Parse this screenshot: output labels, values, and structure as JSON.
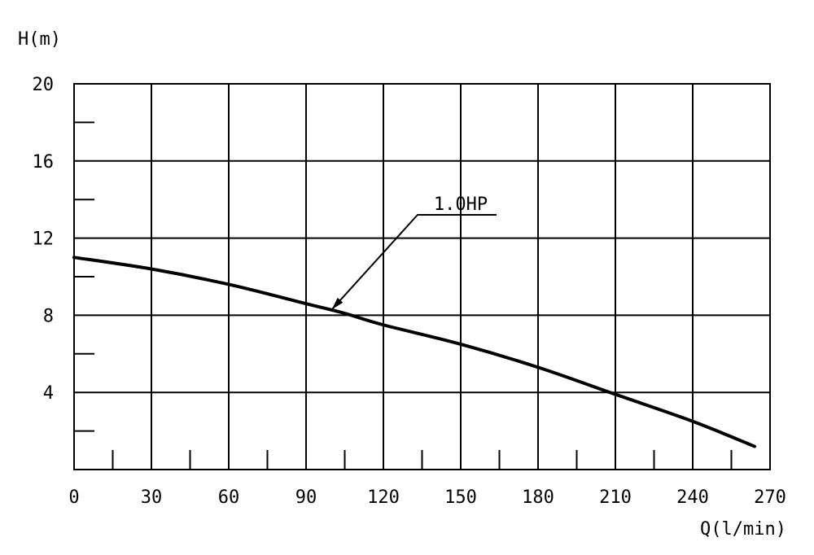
{
  "chart_data": {
    "type": "line",
    "ylabel": "H(m)",
    "xlabel": "Q(l/min)",
    "xlim": [
      0,
      270
    ],
    "ylim": [
      0,
      20
    ],
    "x_ticks": [
      0,
      30,
      60,
      90,
      120,
      150,
      180,
      210,
      240,
      270
    ],
    "y_ticks": [
      4,
      8,
      12,
      16,
      20
    ],
    "x_minor_step": 15,
    "y_minor_step": 2,
    "grid": true,
    "series": [
      {
        "name": "1.0HP",
        "x": [
          0,
          30,
          60,
          90,
          105,
          120,
          150,
          180,
          210,
          240,
          264
        ],
        "y": [
          11.0,
          10.4,
          9.6,
          8.6,
          8.1,
          7.5,
          6.5,
          5.3,
          3.9,
          2.5,
          1.2
        ]
      }
    ],
    "annotations": [
      {
        "text": "1.0HP",
        "target": {
          "x": 100,
          "y": 8.3
        }
      }
    ]
  }
}
